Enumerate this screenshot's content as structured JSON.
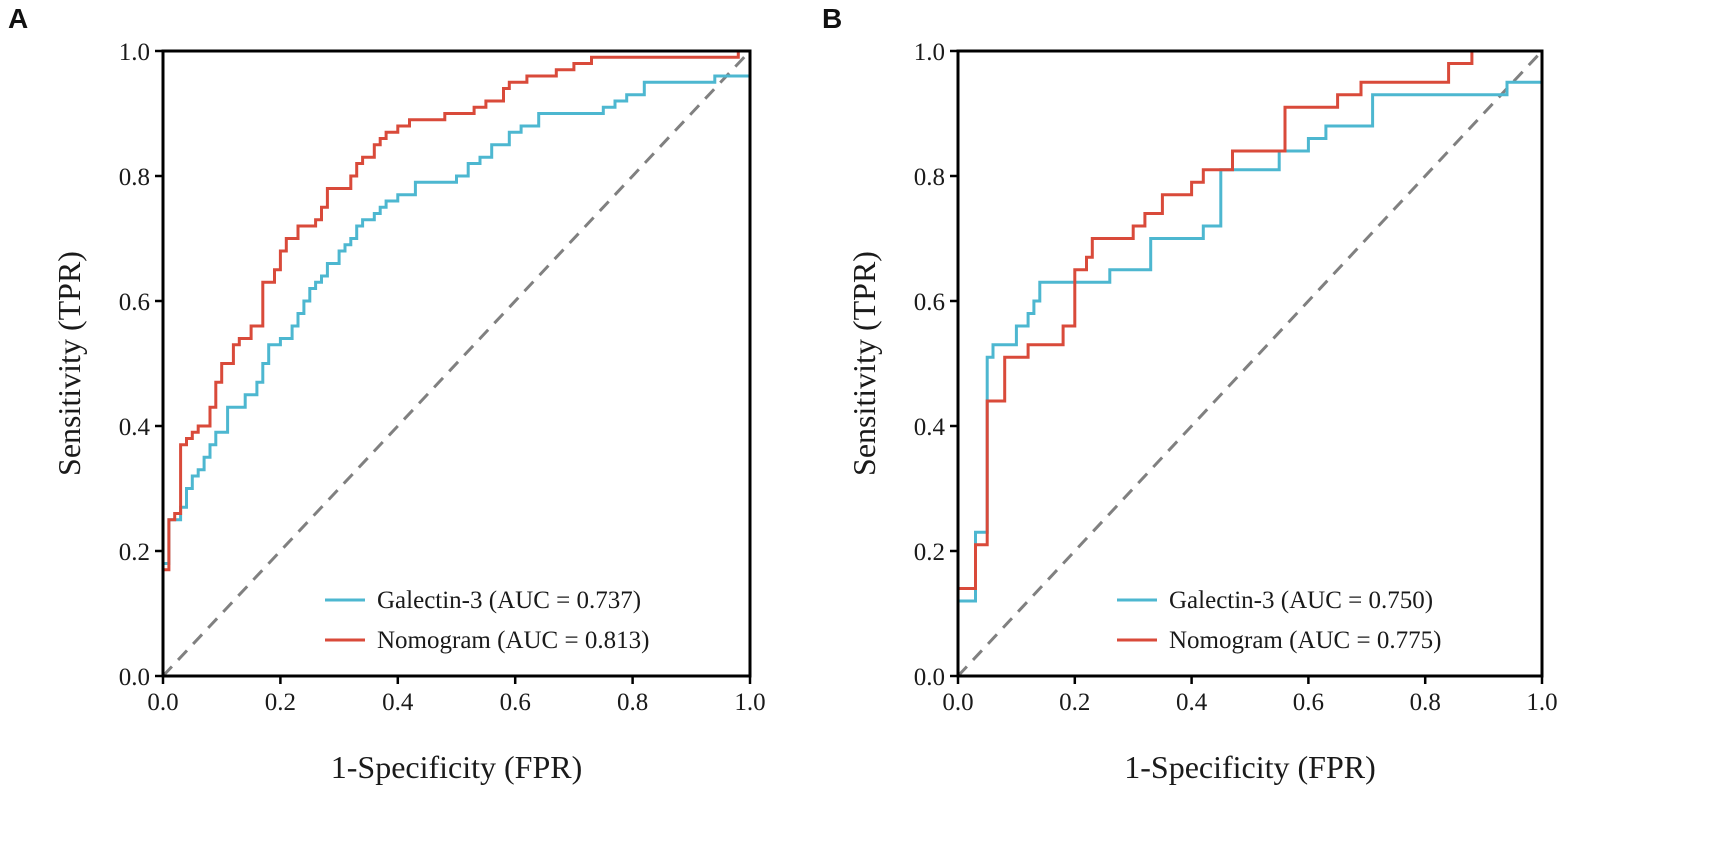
{
  "colors": {
    "galectin": "#4db7d0",
    "nomogram": "#d94a3a",
    "diagonal": "#808080",
    "axis": "#000000"
  },
  "chart_data": [
    {
      "type": "line",
      "panel_label": "A",
      "xlabel": "1-Specificity (FPR)",
      "ylabel": "Sensitivity (TPR)",
      "xlim": [
        0.0,
        1.0
      ],
      "ylim": [
        0.0,
        1.0
      ],
      "xticks": [
        0.0,
        0.2,
        0.4,
        0.6,
        0.8,
        1.0
      ],
      "yticks": [
        0.0,
        0.2,
        0.4,
        0.6,
        0.8,
        1.0
      ],
      "xtick_labels": [
        "0.0",
        "0.2",
        "0.4",
        "0.6",
        "0.8",
        "1.0"
      ],
      "ytick_labels": [
        "0.0",
        "0.2",
        "0.4",
        "0.6",
        "0.8",
        "1.0"
      ],
      "legend_position": "lower-right",
      "reference_line": "diagonal-dashed",
      "series": [
        {
          "name": "Galectin-3",
          "legend_label": "Galectin-3 (AUC = 0.737)",
          "color": "#4db7d0",
          "x": [
            0.0,
            0.0,
            0.01,
            0.01,
            0.03,
            0.03,
            0.04,
            0.04,
            0.05,
            0.05,
            0.06,
            0.06,
            0.07,
            0.07,
            0.08,
            0.08,
            0.09,
            0.09,
            0.11,
            0.11,
            0.14,
            0.14,
            0.16,
            0.16,
            0.17,
            0.17,
            0.18,
            0.18,
            0.2,
            0.2,
            0.22,
            0.22,
            0.23,
            0.23,
            0.24,
            0.24,
            0.25,
            0.25,
            0.26,
            0.26,
            0.27,
            0.27,
            0.28,
            0.28,
            0.3,
            0.3,
            0.31,
            0.31,
            0.32,
            0.32,
            0.33,
            0.33,
            0.34,
            0.34,
            0.36,
            0.36,
            0.37,
            0.37,
            0.38,
            0.38,
            0.4,
            0.4,
            0.43,
            0.43,
            0.44,
            0.44,
            0.5,
            0.5,
            0.52,
            0.52,
            0.54,
            0.54,
            0.56,
            0.56,
            0.59,
            0.59,
            0.61,
            0.61,
            0.64,
            0.64,
            0.65,
            0.65,
            0.67,
            0.67,
            0.75,
            0.75,
            0.77,
            0.77,
            0.79,
            0.79,
            0.82,
            0.82,
            0.94,
            0.94,
            0.97,
            0.97,
            1.0,
            1.0
          ],
          "y": [
            0.0,
            0.18,
            0.18,
            0.25,
            0.25,
            0.27,
            0.27,
            0.3,
            0.3,
            0.32,
            0.32,
            0.33,
            0.33,
            0.35,
            0.35,
            0.37,
            0.37,
            0.39,
            0.39,
            0.43,
            0.43,
            0.45,
            0.45,
            0.47,
            0.47,
            0.5,
            0.5,
            0.53,
            0.53,
            0.54,
            0.54,
            0.56,
            0.56,
            0.58,
            0.58,
            0.6,
            0.6,
            0.62,
            0.62,
            0.63,
            0.63,
            0.64,
            0.64,
            0.66,
            0.66,
            0.68,
            0.68,
            0.69,
            0.69,
            0.7,
            0.7,
            0.72,
            0.72,
            0.73,
            0.73,
            0.74,
            0.74,
            0.75,
            0.75,
            0.76,
            0.76,
            0.77,
            0.77,
            0.79,
            0.79,
            0.79,
            0.79,
            0.8,
            0.8,
            0.82,
            0.82,
            0.83,
            0.83,
            0.85,
            0.85,
            0.87,
            0.87,
            0.88,
            0.88,
            0.9,
            0.9,
            0.9,
            0.9,
            0.9,
            0.9,
            0.91,
            0.91,
            0.92,
            0.92,
            0.93,
            0.93,
            0.95,
            0.95,
            0.96,
            0.96,
            0.96,
            0.96,
            1.0
          ]
        },
        {
          "name": "Nomogram",
          "legend_label": "Nomogram (AUC = 0.813)",
          "color": "#d94a3a",
          "x": [
            0.0,
            0.0,
            0.01,
            0.01,
            0.02,
            0.02,
            0.03,
            0.03,
            0.04,
            0.04,
            0.05,
            0.05,
            0.06,
            0.06,
            0.08,
            0.08,
            0.09,
            0.09,
            0.1,
            0.1,
            0.12,
            0.12,
            0.13,
            0.13,
            0.15,
            0.15,
            0.17,
            0.17,
            0.19,
            0.19,
            0.2,
            0.2,
            0.21,
            0.21,
            0.23,
            0.23,
            0.26,
            0.26,
            0.27,
            0.27,
            0.28,
            0.28,
            0.29,
            0.29,
            0.32,
            0.32,
            0.33,
            0.33,
            0.34,
            0.34,
            0.36,
            0.36,
            0.37,
            0.37,
            0.38,
            0.38,
            0.4,
            0.4,
            0.42,
            0.42,
            0.45,
            0.45,
            0.48,
            0.48,
            0.53,
            0.53,
            0.55,
            0.55,
            0.58,
            0.58,
            0.59,
            0.59,
            0.62,
            0.62,
            0.67,
            0.67,
            0.7,
            0.7,
            0.73,
            0.73,
            0.75,
            0.75,
            0.98,
            0.98,
            1.0,
            1.0
          ],
          "y": [
            0.0,
            0.17,
            0.17,
            0.25,
            0.25,
            0.26,
            0.26,
            0.37,
            0.37,
            0.38,
            0.38,
            0.39,
            0.39,
            0.4,
            0.4,
            0.43,
            0.43,
            0.47,
            0.47,
            0.5,
            0.5,
            0.53,
            0.53,
            0.54,
            0.54,
            0.56,
            0.56,
            0.63,
            0.63,
            0.65,
            0.65,
            0.68,
            0.68,
            0.7,
            0.7,
            0.72,
            0.72,
            0.73,
            0.73,
            0.75,
            0.75,
            0.78,
            0.78,
            0.78,
            0.78,
            0.8,
            0.8,
            0.82,
            0.82,
            0.83,
            0.83,
            0.85,
            0.85,
            0.86,
            0.86,
            0.87,
            0.87,
            0.88,
            0.88,
            0.89,
            0.89,
            0.89,
            0.89,
            0.9,
            0.9,
            0.91,
            0.91,
            0.92,
            0.92,
            0.94,
            0.94,
            0.95,
            0.95,
            0.96,
            0.96,
            0.97,
            0.97,
            0.98,
            0.98,
            0.99,
            0.99,
            0.99,
            0.99,
            1.0,
            1.0,
            1.0
          ]
        }
      ]
    },
    {
      "type": "line",
      "panel_label": "B",
      "xlabel": "1-Specificity (FPR)",
      "ylabel": "Sensitivity (TPR)",
      "xlim": [
        0.0,
        1.0
      ],
      "ylim": [
        0.0,
        1.0
      ],
      "xticks": [
        0.0,
        0.2,
        0.4,
        0.6,
        0.8,
        1.0
      ],
      "yticks": [
        0.0,
        0.2,
        0.4,
        0.6,
        0.8,
        1.0
      ],
      "xtick_labels": [
        "0.0",
        "0.2",
        "0.4",
        "0.6",
        "0.8",
        "1.0"
      ],
      "ytick_labels": [
        "0.0",
        "0.2",
        "0.4",
        "0.6",
        "0.8",
        "1.0"
      ],
      "legend_position": "lower-right",
      "reference_line": "diagonal-dashed",
      "series": [
        {
          "name": "Galectin-3",
          "legend_label": "Galectin-3 (AUC = 0.750)",
          "color": "#4db7d0",
          "x": [
            0.0,
            0.0,
            0.03,
            0.03,
            0.05,
            0.05,
            0.06,
            0.06,
            0.1,
            0.1,
            0.12,
            0.12,
            0.13,
            0.13,
            0.14,
            0.14,
            0.26,
            0.26,
            0.33,
            0.33,
            0.42,
            0.42,
            0.45,
            0.45,
            0.55,
            0.55,
            0.6,
            0.6,
            0.63,
            0.63,
            0.71,
            0.71,
            0.94,
            0.94,
            1.0
          ],
          "y": [
            0.0,
            0.12,
            0.12,
            0.23,
            0.23,
            0.51,
            0.51,
            0.53,
            0.53,
            0.56,
            0.56,
            0.58,
            0.58,
            0.6,
            0.6,
            0.63,
            0.63,
            0.65,
            0.65,
            0.7,
            0.7,
            0.72,
            0.72,
            0.81,
            0.81,
            0.84,
            0.84,
            0.86,
            0.86,
            0.88,
            0.88,
            0.93,
            0.93,
            0.95,
            0.95
          ]
        },
        {
          "name": "Nomogram",
          "legend_label": "Nomogram (AUC = 0.775)",
          "color": "#d94a3a",
          "x": [
            0.0,
            0.0,
            0.03,
            0.03,
            0.04,
            0.04,
            0.05,
            0.05,
            0.08,
            0.08,
            0.1,
            0.1,
            0.12,
            0.12,
            0.18,
            0.18,
            0.2,
            0.2,
            0.22,
            0.22,
            0.23,
            0.23,
            0.3,
            0.3,
            0.32,
            0.32,
            0.33,
            0.33,
            0.35,
            0.35,
            0.4,
            0.4,
            0.42,
            0.42,
            0.47,
            0.47,
            0.56,
            0.56,
            0.65,
            0.65,
            0.67,
            0.67,
            0.69,
            0.69,
            0.84,
            0.84,
            0.88,
            0.88,
            0.98,
            0.98,
            1.0
          ],
          "y": [
            0.0,
            0.14,
            0.14,
            0.21,
            0.21,
            0.21,
            0.21,
            0.44,
            0.44,
            0.51,
            0.51,
            0.51,
            0.51,
            0.53,
            0.53,
            0.56,
            0.56,
            0.65,
            0.65,
            0.67,
            0.67,
            0.7,
            0.7,
            0.72,
            0.72,
            0.74,
            0.74,
            0.74,
            0.74,
            0.77,
            0.77,
            0.79,
            0.79,
            0.81,
            0.81,
            0.84,
            0.84,
            0.91,
            0.91,
            0.93,
            0.93,
            0.93,
            0.93,
            0.95,
            0.95,
            0.98,
            0.98,
            1.0,
            1.0,
            1.0,
            1.0
          ]
        }
      ]
    }
  ]
}
